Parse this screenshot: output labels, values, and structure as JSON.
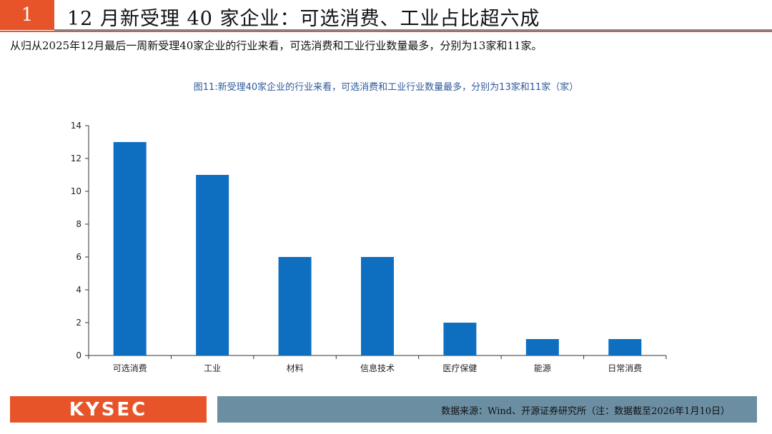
{
  "header": {
    "section_number": "1",
    "title": "12 月新受理 40 家企业：可选消费、工业占比超六成"
  },
  "summary": "从归从2025年12月最后一周新受理40家企业的行业来看，可选消费和工业行业数量最多，分别为13家和11家。",
  "figure": {
    "caption": "图11:新受理40家企业的行业来看，可选消费和工业行业数量最多，分别为13家和11家（家）"
  },
  "chart_data": {
    "type": "bar",
    "categories": [
      "可选消费",
      "工业",
      "材料",
      "信息技术",
      "医疗保健",
      "能源",
      "日常消费"
    ],
    "values": [
      13,
      11,
      6,
      6,
      2,
      1,
      1
    ],
    "ylim": [
      0,
      14
    ],
    "yticks": [
      0,
      2,
      4,
      6,
      8,
      10,
      12,
      14
    ],
    "bar_color": "#0e6fc1",
    "grid": false,
    "legend": "none"
  },
  "footer": {
    "logo": "KYSEC",
    "source": "数据来源：Wind、开源证券研究所（注：数据截至2026年1月10日）"
  },
  "colors": {
    "accent": "#e8542a",
    "footer_bar": "#6b8ea3"
  }
}
